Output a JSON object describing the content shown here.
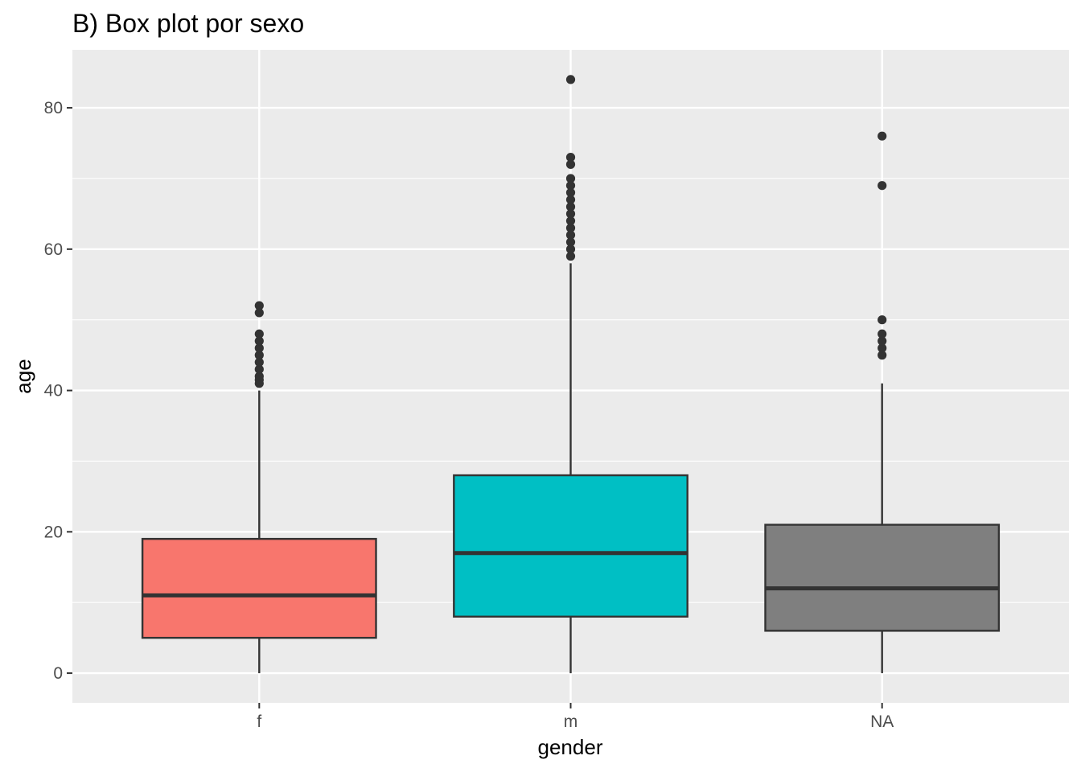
{
  "chart_data": {
    "type": "boxplot",
    "title": "B) Box plot por sexo",
    "xlabel": "gender",
    "ylabel": "age",
    "ylim": [
      -4.2,
      88.2
    ],
    "yticks": [
      0,
      20,
      40,
      60,
      80
    ],
    "yticks_labels": [
      "0",
      "20",
      "40",
      "60",
      "80"
    ],
    "grid": true,
    "legend": "none",
    "colors": {
      "panel_bg": "#ebebeb",
      "grid": "#ffffff",
      "outline": "#333333",
      "tick_text": "#4d4d4d"
    },
    "categories": [
      "f",
      "m",
      "NA"
    ],
    "boxes": [
      {
        "category": "f",
        "fill": "#f8766d",
        "whisker_low": 0,
        "q1": 5,
        "median": 11,
        "q3": 19,
        "whisker_high": 40,
        "outliers": [
          41,
          41.5,
          42,
          43,
          44,
          45,
          46,
          47,
          48,
          51,
          52
        ]
      },
      {
        "category": "m",
        "fill": "#00bfc4",
        "whisker_low": 0,
        "q1": 8,
        "median": 17,
        "q3": 28,
        "whisker_high": 58,
        "outliers": [
          59,
          60,
          61,
          62,
          63,
          64,
          65,
          66,
          67,
          68,
          69,
          70,
          72,
          73,
          84
        ]
      },
      {
        "category": "NA",
        "fill": "#7f7f7f",
        "whisker_low": 0,
        "q1": 6,
        "median": 12,
        "q3": 21,
        "whisker_high": 41,
        "outliers": [
          45,
          46,
          47,
          48,
          50,
          69,
          76
        ]
      }
    ]
  }
}
